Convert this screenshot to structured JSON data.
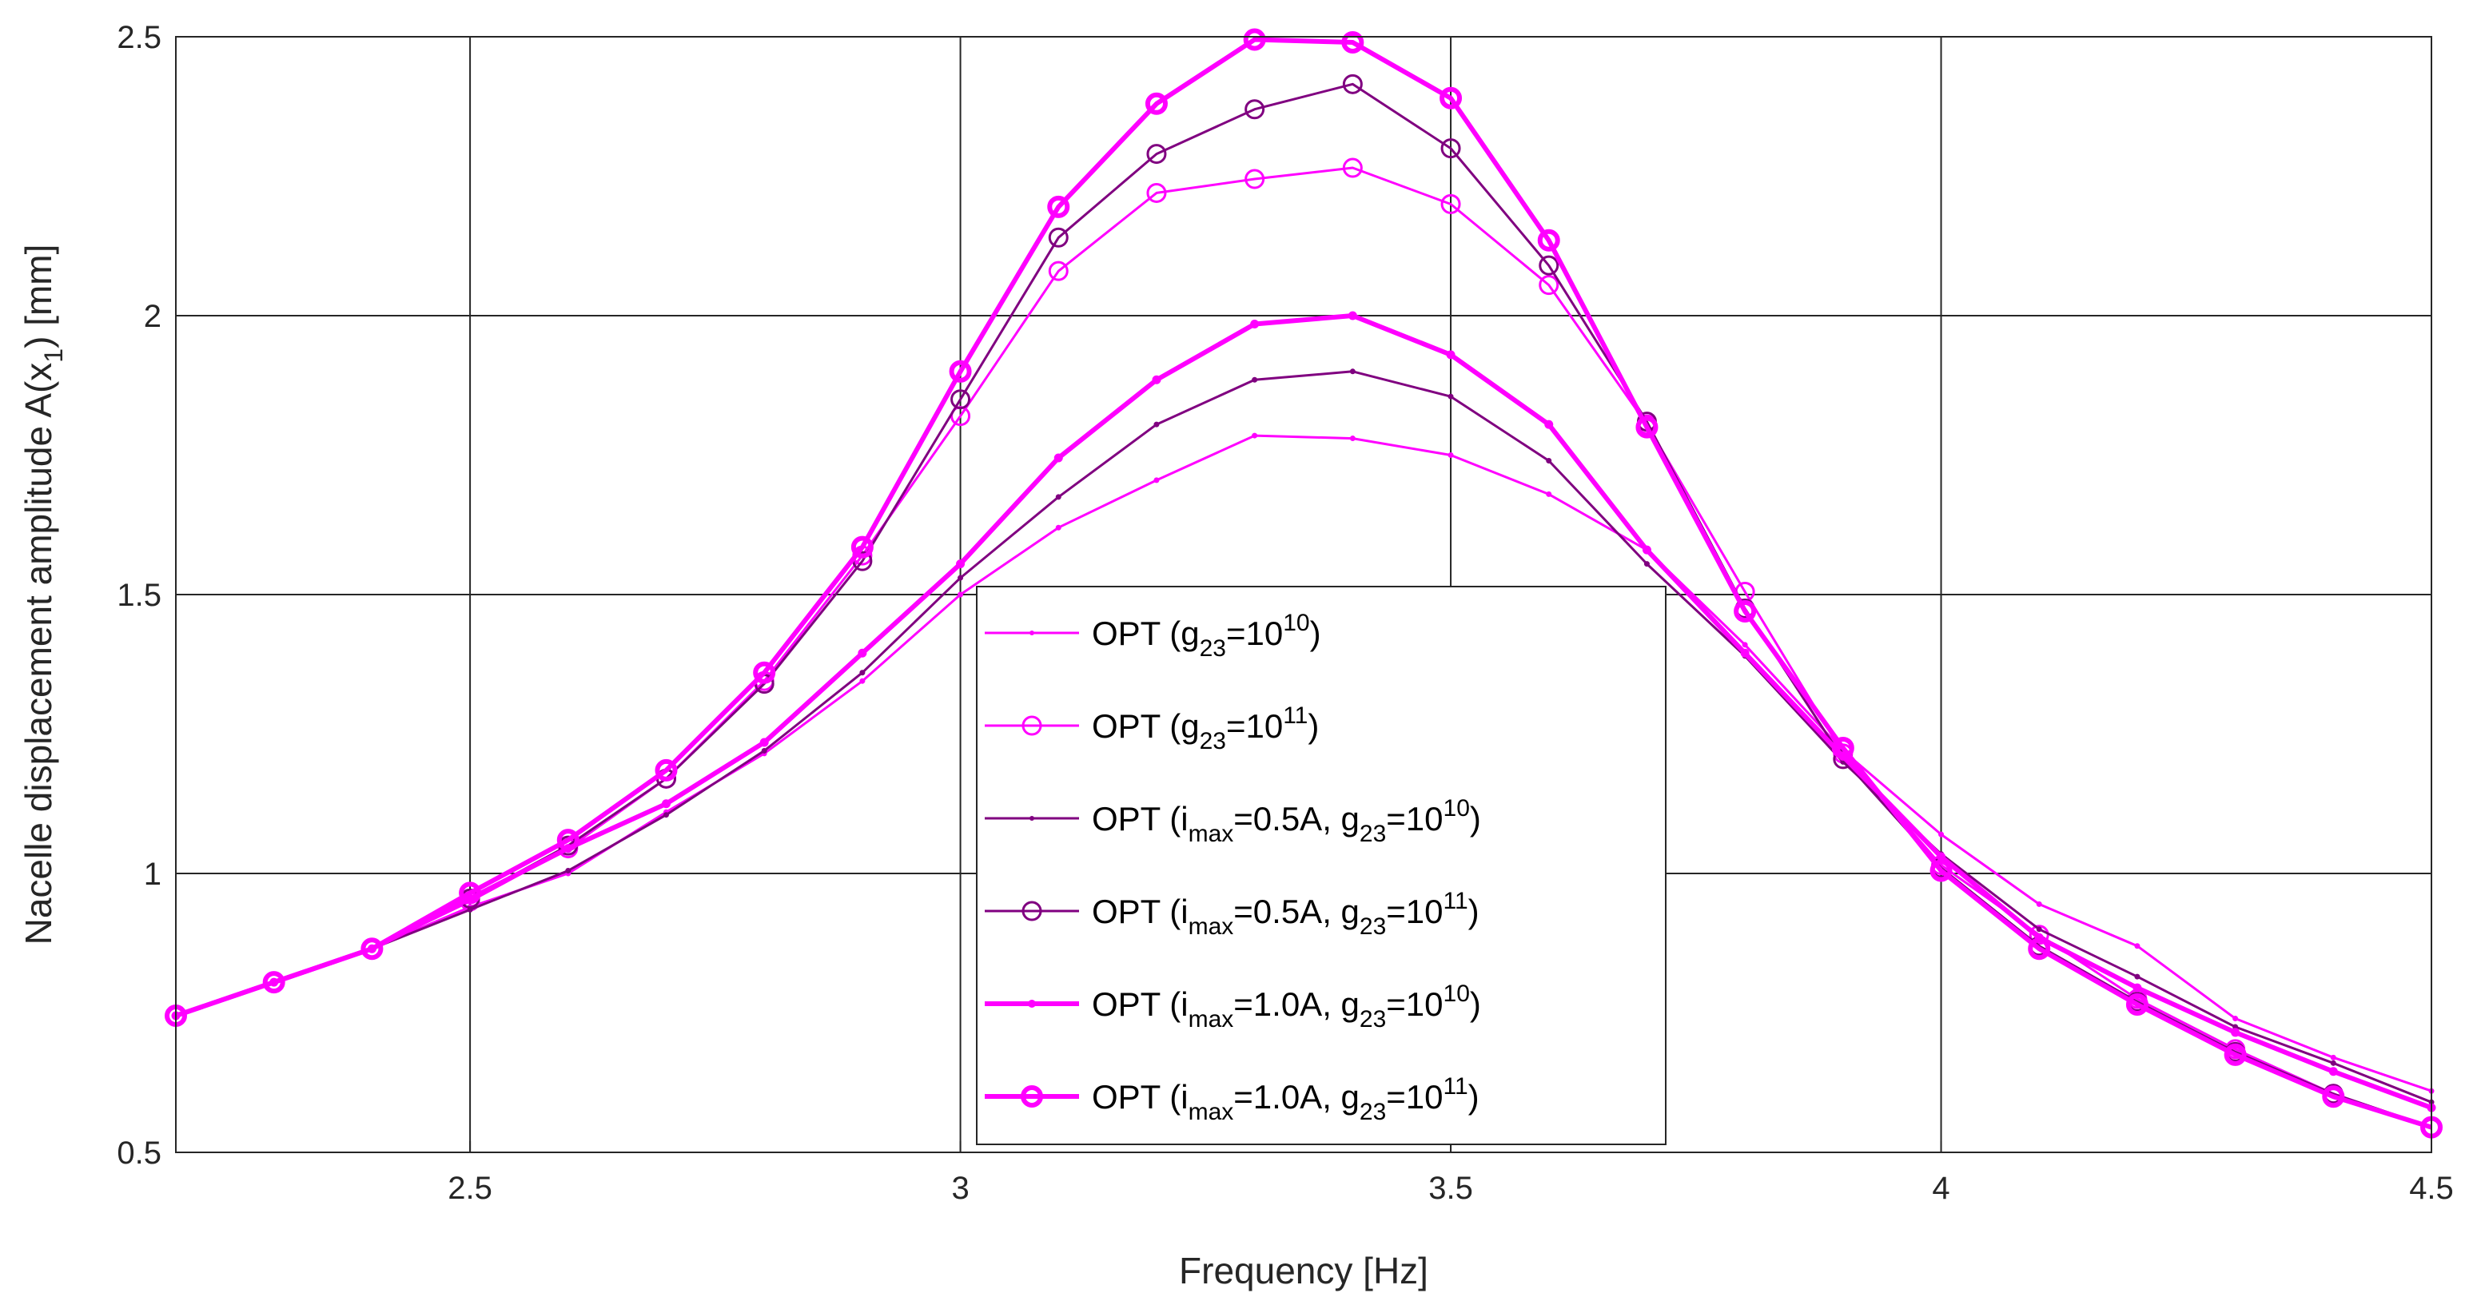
{
  "chart_data": {
    "type": "line",
    "xlabel": "Frequency [Hz]",
    "ylabel_main": "Nacelle displacement amplitude A(x",
    "ylabel_sub": "1",
    "ylabel_end": ") [mm]",
    "xlim": [
      2.2,
      4.5
    ],
    "ylim": [
      0.5,
      2.5
    ],
    "xticks": [
      2.5,
      3,
      3.5,
      4,
      4.5
    ],
    "xtick_labels": [
      "2.5",
      "3",
      "3.5",
      "4",
      "4.5"
    ],
    "yticks": [
      0.5,
      1,
      1.5,
      2,
      2.5
    ],
    "ytick_labels": [
      "0.5",
      "1",
      "1.5",
      "2",
      "2.5"
    ],
    "grid": true,
    "legend_position": "center",
    "x": [
      2.2,
      2.3,
      2.4,
      2.5,
      2.6,
      2.7,
      2.8,
      2.9,
      3.0,
      3.1,
      3.2,
      3.3,
      3.4,
      3.5,
      3.6,
      3.7,
      3.8,
      3.9,
      4.0,
      4.1,
      4.2,
      4.3,
      4.4,
      4.5
    ],
    "series": [
      {
        "name": "OPT (g23=10^10)",
        "legend": {
          "pre": "OPT (g",
          "sub1": "23",
          "mid1": "=10",
          "sup": "10",
          "post": ")"
        },
        "color": "#ff00ff",
        "line_width": 3,
        "marker": "dot",
        "values": [
          0.745,
          0.805,
          0.865,
          0.94,
          1.0,
          1.11,
          1.215,
          1.345,
          1.5,
          1.62,
          1.705,
          1.785,
          1.78,
          1.75,
          1.68,
          1.58,
          1.41,
          1.22,
          1.07,
          0.945,
          0.87,
          0.74,
          0.67,
          0.61
        ]
      },
      {
        "name": "OPT (g23=10^11)",
        "legend": {
          "pre": "OPT (g",
          "sub1": "23",
          "mid1": "=10",
          "sup": "11",
          "post": ")"
        },
        "color": "#ff00ff",
        "line_width": 3,
        "marker": "circle",
        "values": [
          0.745,
          0.805,
          0.865,
          0.95,
          1.045,
          1.17,
          1.345,
          1.57,
          1.82,
          2.08,
          2.22,
          2.245,
          2.265,
          2.2,
          2.055,
          1.805,
          1.505,
          1.215,
          1.015,
          0.89,
          0.775,
          0.685,
          0.605,
          0.545
        ]
      },
      {
        "name": "OPT (imax=0.5A, g23=10^10)",
        "legend": {
          "pre": "OPT (i",
          "sub1": "max",
          "mid1": "=0.5A, g",
          "sub2": "23",
          "mid2": "=10",
          "sup": "10",
          "post": ")"
        },
        "color": "#800080",
        "line_width": 3,
        "marker": "dot",
        "values": [
          0.745,
          0.805,
          0.865,
          0.935,
          1.005,
          1.105,
          1.22,
          1.36,
          1.53,
          1.675,
          1.805,
          1.885,
          1.9,
          1.855,
          1.74,
          1.555,
          1.39,
          1.2,
          1.035,
          0.9,
          0.815,
          0.725,
          0.66,
          0.59
        ]
      },
      {
        "name": "OPT (imax=0.5A, g23=10^11)",
        "legend": {
          "pre": "OPT (i",
          "sub1": "max",
          "mid1": "=0.5A, g",
          "sub2": "23",
          "mid2": "=10",
          "sup": "11",
          "post": ")"
        },
        "color": "#800080",
        "line_width": 3,
        "marker": "circle",
        "values": [
          0.745,
          0.805,
          0.865,
          0.955,
          1.05,
          1.17,
          1.34,
          1.56,
          1.85,
          2.14,
          2.29,
          2.37,
          2.415,
          2.3,
          2.09,
          1.81,
          1.475,
          1.205,
          1.01,
          0.87,
          0.77,
          0.68,
          0.605,
          0.545
        ]
      },
      {
        "name": "OPT (imax=1.0A, g23=10^10)",
        "legend": {
          "pre": "OPT (i",
          "sub1": "max",
          "mid1": "=1.0A, g",
          "sub2": "23",
          "mid2": "=10",
          "sup": "10",
          "post": ")"
        },
        "color": "#ff00ff",
        "line_width": 6,
        "marker": "dot",
        "values": [
          0.745,
          0.805,
          0.865,
          0.955,
          1.045,
          1.125,
          1.235,
          1.395,
          1.555,
          1.745,
          1.885,
          1.985,
          2.0,
          1.93,
          1.805,
          1.58,
          1.395,
          1.21,
          1.03,
          0.885,
          0.795,
          0.715,
          0.645,
          0.58
        ]
      },
      {
        "name": "OPT (imax=1.0A, g23=10^11)",
        "legend": {
          "pre": "OPT (i",
          "sub1": "max",
          "mid1": "=1.0A, g",
          "sub2": "23",
          "mid2": "=10",
          "sup": "11",
          "post": ")"
        },
        "color": "#ff00ff",
        "line_width": 6,
        "marker": "circle",
        "values": [
          0.745,
          0.805,
          0.865,
          0.965,
          1.06,
          1.185,
          1.36,
          1.585,
          1.9,
          2.195,
          2.38,
          2.495,
          2.49,
          2.39,
          2.135,
          1.8,
          1.47,
          1.225,
          1.005,
          0.865,
          0.765,
          0.675,
          0.6,
          0.545
        ]
      }
    ]
  }
}
